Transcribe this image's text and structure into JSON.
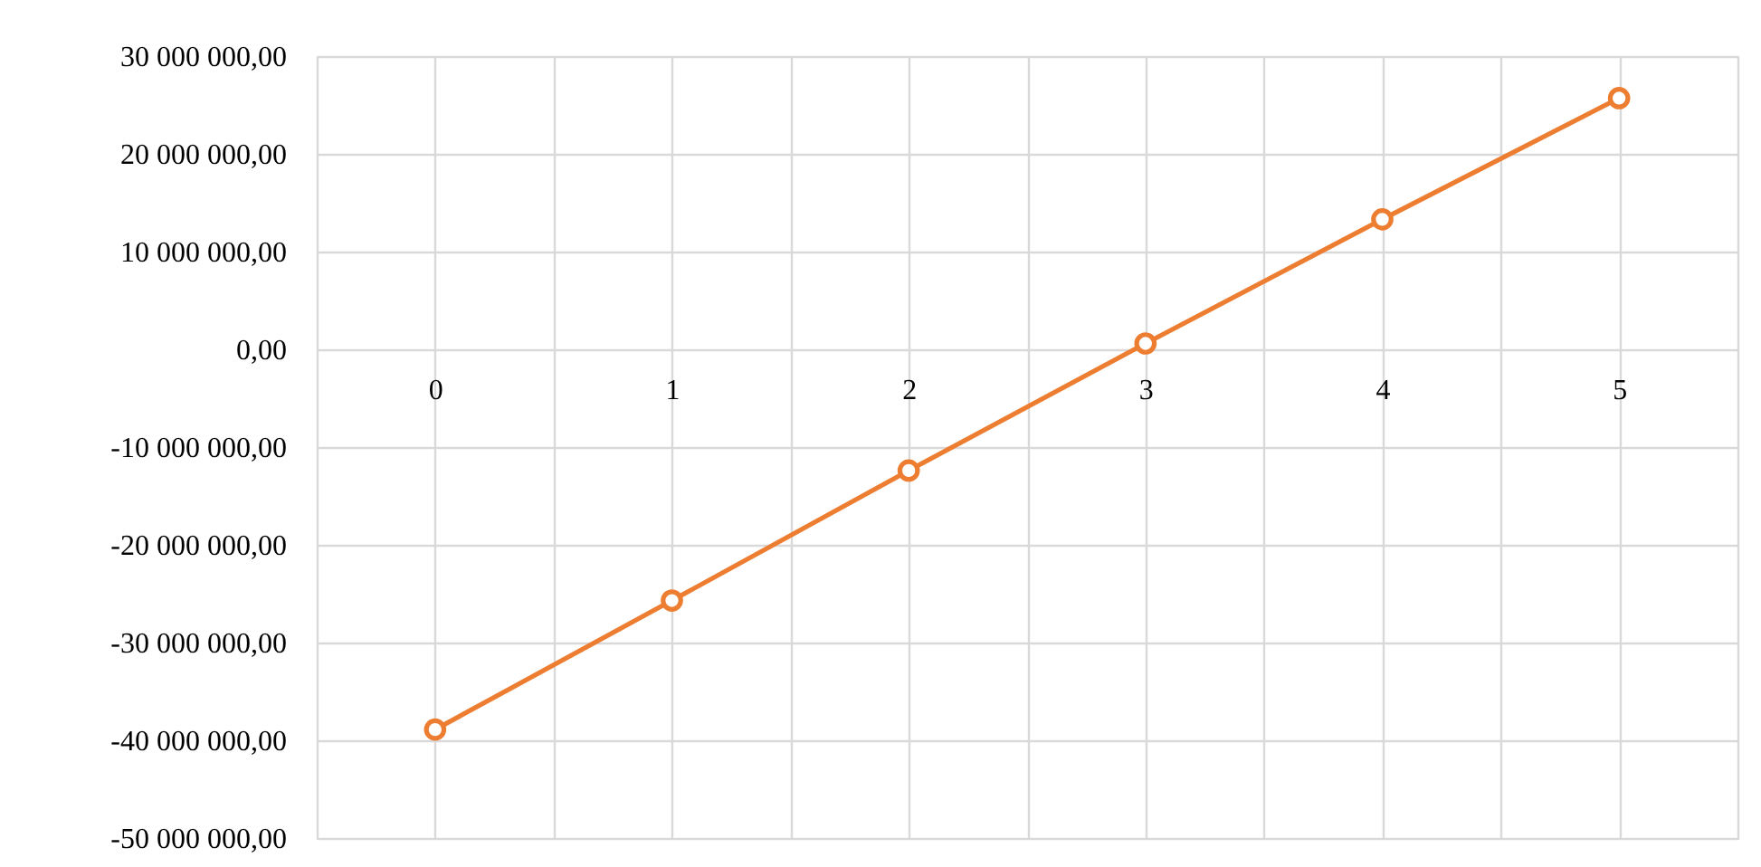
{
  "chart_data": {
    "type": "line",
    "categories": [
      "0",
      "1",
      "2",
      "3",
      "4",
      "5"
    ],
    "series": [
      {
        "color": "#ed7d31",
        "values": [
          -38900000,
          -25700000,
          -12400000,
          600000,
          13300000,
          25700000
        ]
      }
    ],
    "ylim": [
      -50000000,
      30000000
    ],
    "yticks": [
      {
        "value": -50000000,
        "label": "-50 000 000,00"
      },
      {
        "value": -40000000,
        "label": "-40 000 000,00"
      },
      {
        "value": -30000000,
        "label": "-30 000 000,00"
      },
      {
        "value": -20000000,
        "label": "-20 000 000,00"
      },
      {
        "value": -10000000,
        "label": "-10 000 000,00"
      },
      {
        "value": 0,
        "label": "0,00"
      },
      {
        "value": 10000000,
        "label": "10 000 000,00"
      },
      {
        "value": 20000000,
        "label": "20 000 000,00"
      },
      {
        "value": 30000000,
        "label": "30 000 000,00"
      }
    ],
    "grid": true,
    "marker": "circle",
    "line_style": "solid"
  }
}
